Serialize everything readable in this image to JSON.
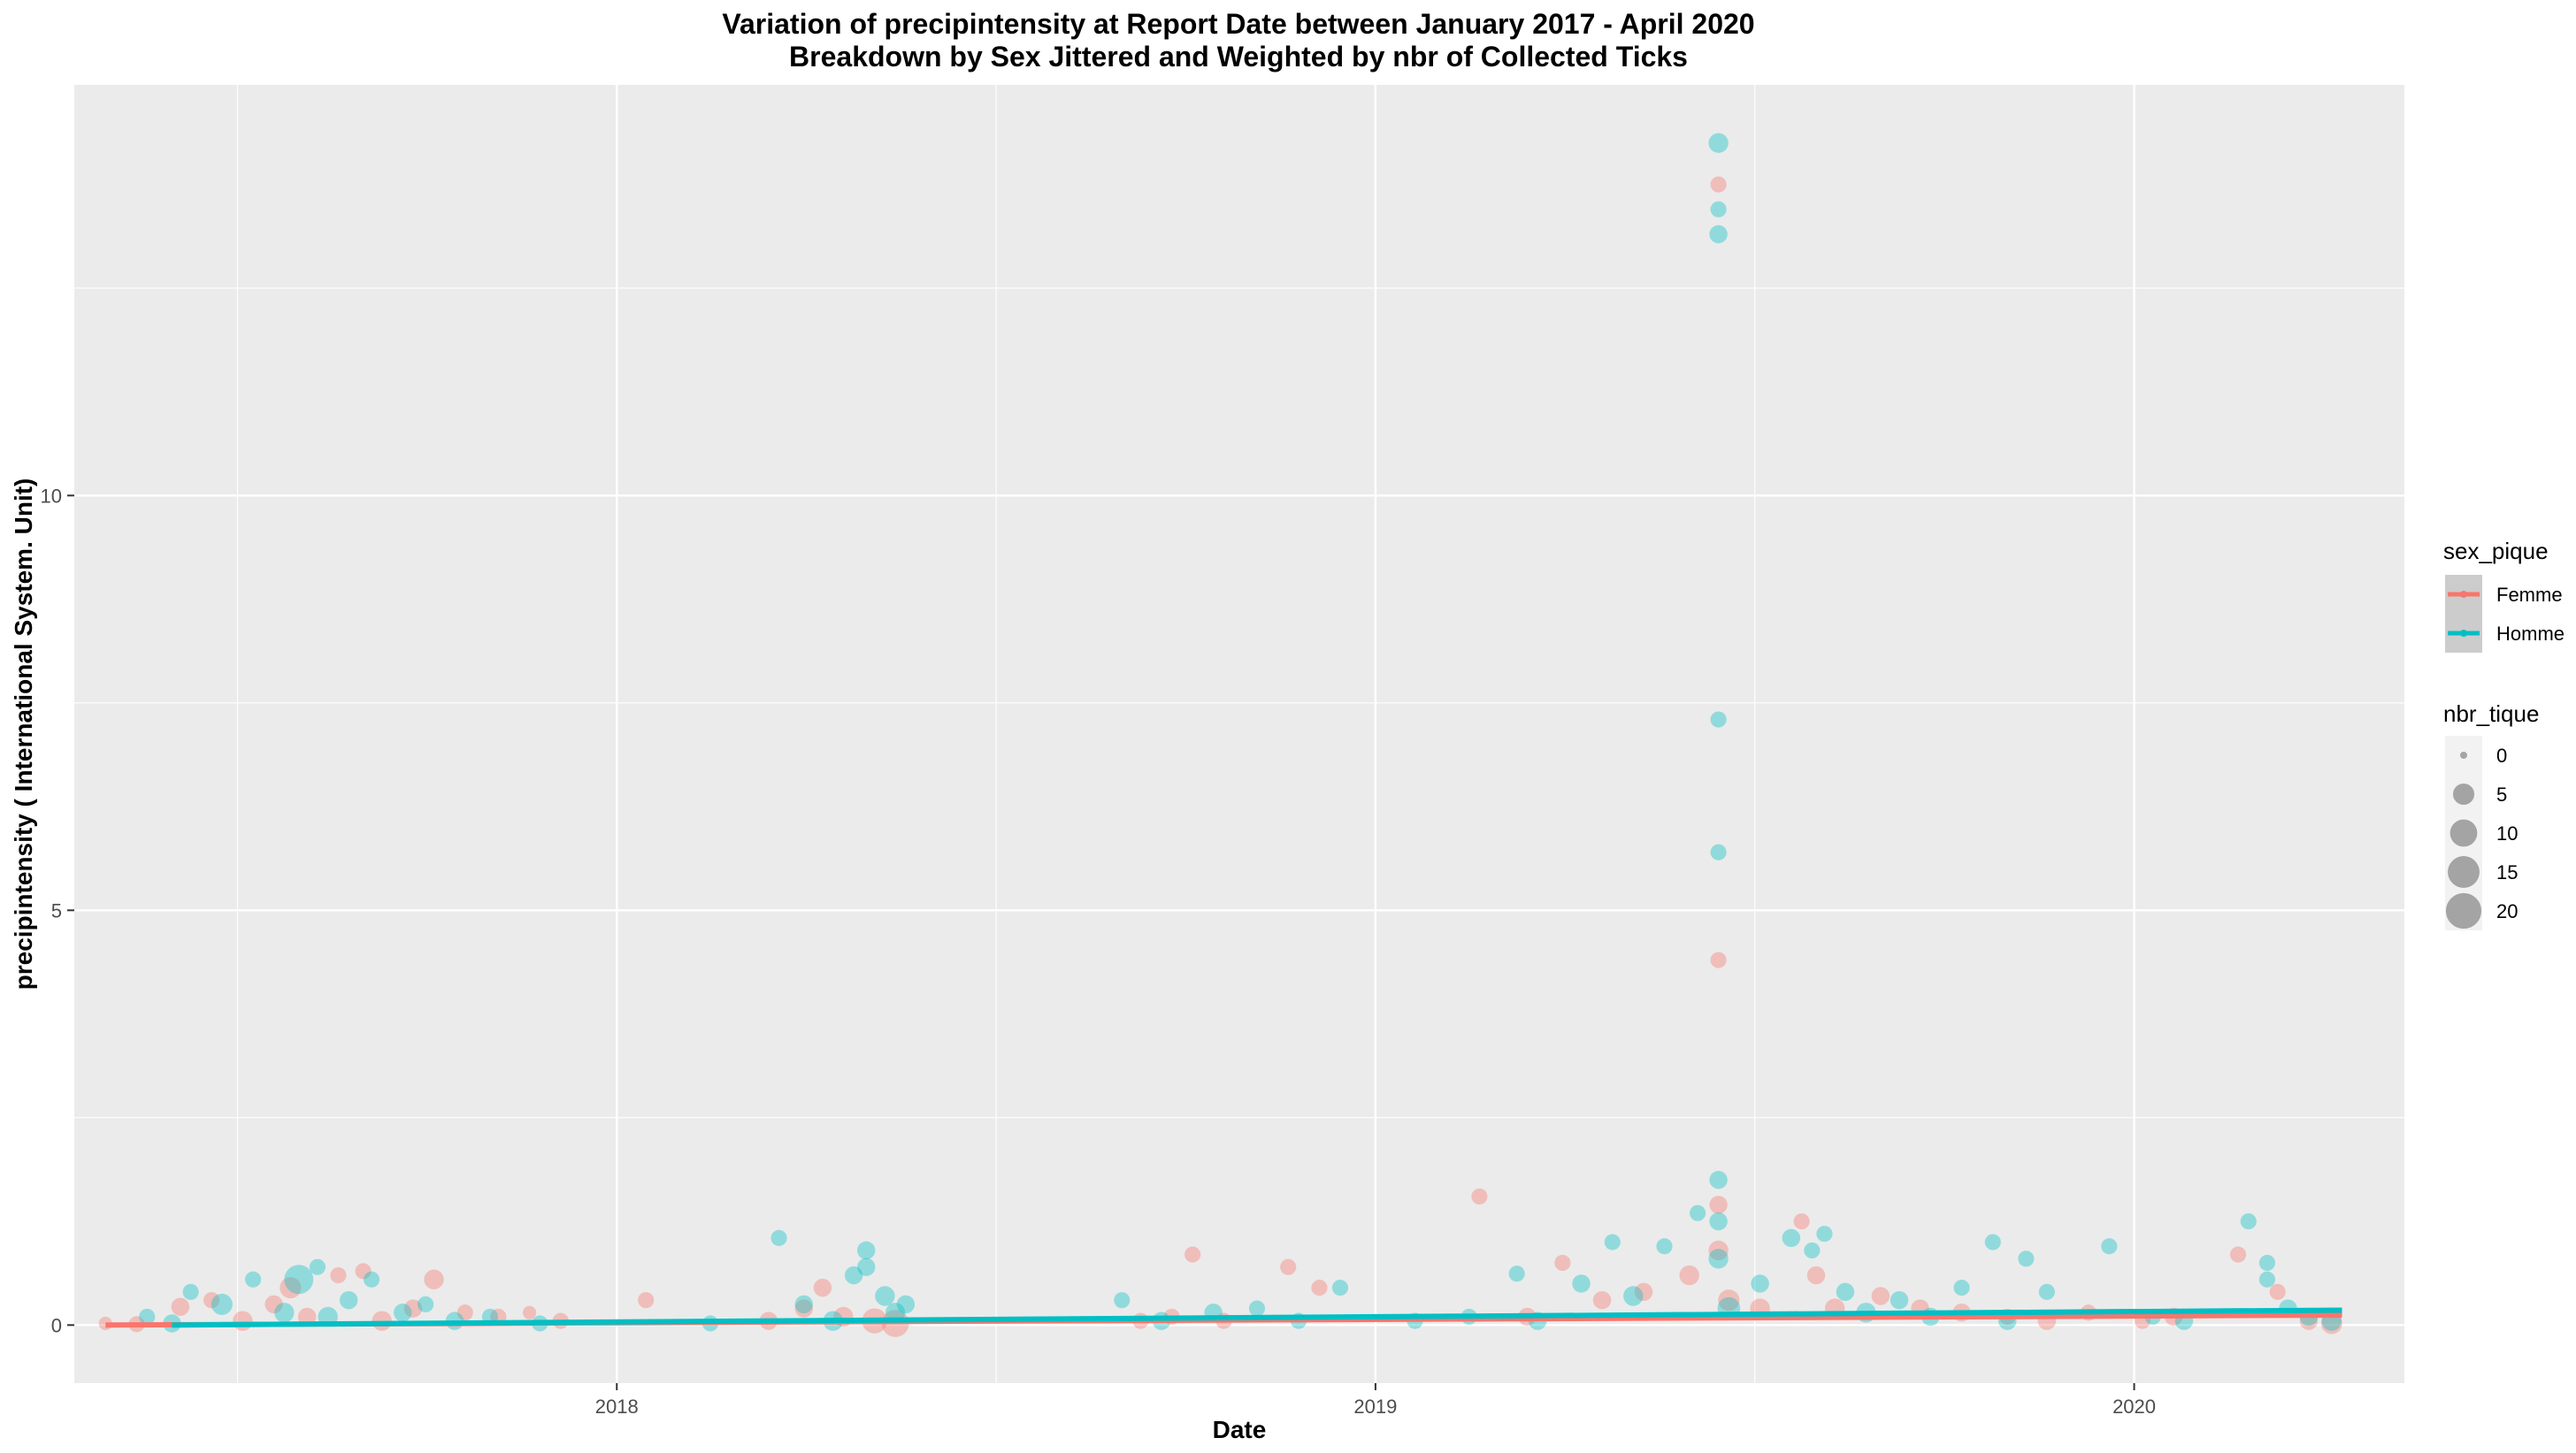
{
  "chart_data": {
    "type": "scatter",
    "title": "Variation of  precipintensity  at Report Date between January 2017 - April 2020",
    "subtitle": "Breakdown by Sex Jittered and Weighted by nbr of Collected Ticks",
    "xlabel": "Date",
    "ylabel": "precipintensity ( International System. Unit)",
    "xlim": [
      "2017-04-15",
      "2020-05-10"
    ],
    "ylim": [
      -0.7,
      14.95
    ],
    "x_ticks": [
      {
        "label": "2018",
        "value": "2018-01-01"
      },
      {
        "label": "2019",
        "value": "2019-01-01"
      },
      {
        "label": "2020",
        "value": "2020-01-01"
      }
    ],
    "y_ticks": [
      {
        "label": "0",
        "value": 0
      },
      {
        "label": "5",
        "value": 5
      },
      {
        "label": "10",
        "value": 10
      }
    ],
    "grid": true,
    "legend_placement": "right",
    "colors": {
      "panel": "#EBEBEB",
      "grid": "#FFFFFF",
      "Femme": "#F8766D",
      "Homme": "#00BFC4"
    },
    "legend_color": {
      "title": "sex_pique",
      "entries": [
        {
          "label": "Femme",
          "color": "#F8766D"
        },
        {
          "label": "Homme",
          "color": "#00BFC4"
        }
      ]
    },
    "legend_size": {
      "title": "nbr_tique",
      "entries": [
        {
          "label": "0",
          "value": 0
        },
        {
          "label": "5",
          "value": 5
        },
        {
          "label": "10",
          "value": 10
        },
        {
          "label": "15",
          "value": 15
        },
        {
          "label": "20",
          "value": 20
        }
      ]
    },
    "trend_lines": [
      {
        "name": "Femme",
        "points": [
          [
            "2017-04-30",
            0.0
          ],
          [
            "2020-04-10",
            0.12
          ]
        ]
      },
      {
        "name": "Homme",
        "points": [
          [
            "2017-06-01",
            0.0
          ],
          [
            "2020-04-10",
            0.18
          ]
        ]
      }
    ],
    "series": [
      {
        "name": "Femme",
        "points": [
          [
            "2017-04-30",
            0.02,
            1
          ],
          [
            "2017-05-15",
            0.01,
            2
          ],
          [
            "2017-06-05",
            0.22,
            3
          ],
          [
            "2017-06-20",
            0.3,
            2
          ],
          [
            "2017-07-05",
            0.05,
            4
          ],
          [
            "2017-07-20",
            0.25,
            3
          ],
          [
            "2017-07-28",
            0.45,
            5
          ],
          [
            "2017-08-05",
            0.1,
            3
          ],
          [
            "2017-08-20",
            0.6,
            2
          ],
          [
            "2017-09-01",
            0.65,
            2
          ],
          [
            "2017-09-10",
            0.05,
            4
          ],
          [
            "2017-09-25",
            0.2,
            3
          ],
          [
            "2017-10-05",
            0.55,
            4
          ],
          [
            "2017-10-20",
            0.15,
            2
          ],
          [
            "2017-11-05",
            0.1,
            2
          ],
          [
            "2017-11-20",
            0.15,
            1
          ],
          [
            "2017-12-05",
            0.05,
            2
          ],
          [
            "2018-01-15",
            0.3,
            2
          ],
          [
            "2018-03-15",
            0.05,
            3
          ],
          [
            "2018-04-01",
            0.2,
            3
          ],
          [
            "2018-04-10",
            0.45,
            3
          ],
          [
            "2018-04-20",
            0.1,
            4
          ],
          [
            "2018-05-05",
            0.05,
            8
          ],
          [
            "2018-05-15",
            0.02,
            10
          ],
          [
            "2018-09-10",
            0.05,
            2
          ],
          [
            "2018-09-25",
            0.1,
            2
          ],
          [
            "2018-10-05",
            0.85,
            2
          ],
          [
            "2018-10-20",
            0.05,
            2
          ],
          [
            "2018-11-20",
            0.7,
            2
          ],
          [
            "2018-12-05",
            0.45,
            2
          ],
          [
            "2019-02-20",
            1.55,
            2
          ],
          [
            "2019-03-15",
            0.1,
            3
          ],
          [
            "2019-04-01",
            0.75,
            2
          ],
          [
            "2019-04-20",
            0.3,
            3
          ],
          [
            "2019-05-10",
            0.4,
            3
          ],
          [
            "2019-06-01",
            0.6,
            4
          ],
          [
            "2019-06-15",
            13.75,
            2
          ],
          [
            "2019-06-15",
            4.4,
            2
          ],
          [
            "2019-06-15",
            1.45,
            3
          ],
          [
            "2019-06-15",
            0.9,
            4
          ],
          [
            "2019-06-20",
            0.3,
            5
          ],
          [
            "2019-07-05",
            0.2,
            4
          ],
          [
            "2019-07-25",
            1.25,
            2
          ],
          [
            "2019-08-01",
            0.6,
            3
          ],
          [
            "2019-08-10",
            0.2,
            4
          ],
          [
            "2019-09-01",
            0.35,
            3
          ],
          [
            "2019-09-20",
            0.2,
            3
          ],
          [
            "2019-10-10",
            0.15,
            3
          ],
          [
            "2019-11-01",
            0.1,
            2
          ],
          [
            "2019-11-20",
            0.05,
            3
          ],
          [
            "2019-12-10",
            0.15,
            2
          ],
          [
            "2020-01-05",
            0.05,
            2
          ],
          [
            "2020-01-20",
            0.1,
            3
          ],
          [
            "2020-02-20",
            0.85,
            2
          ],
          [
            "2020-03-10",
            0.4,
            2
          ],
          [
            "2020-03-25",
            0.05,
            3
          ],
          [
            "2020-04-05",
            0.02,
            5
          ]
        ]
      },
      {
        "name": "Homme",
        "points": [
          [
            "2017-05-20",
            0.1,
            2
          ],
          [
            "2017-06-01",
            0.02,
            3
          ],
          [
            "2017-06-10",
            0.4,
            2
          ],
          [
            "2017-06-25",
            0.25,
            5
          ],
          [
            "2017-07-10",
            0.55,
            2
          ],
          [
            "2017-07-25",
            0.15,
            4
          ],
          [
            "2017-08-01",
            0.55,
            12
          ],
          [
            "2017-08-10",
            0.7,
            2
          ],
          [
            "2017-08-15",
            0.1,
            4
          ],
          [
            "2017-08-25",
            0.3,
            3
          ],
          [
            "2017-09-05",
            0.55,
            2
          ],
          [
            "2017-09-20",
            0.15,
            3
          ],
          [
            "2017-10-01",
            0.25,
            2
          ],
          [
            "2017-10-15",
            0.05,
            3
          ],
          [
            "2017-11-01",
            0.1,
            2
          ],
          [
            "2017-11-25",
            0.02,
            2
          ],
          [
            "2018-02-15",
            0.02,
            2
          ],
          [
            "2018-03-20",
            1.05,
            2
          ],
          [
            "2018-04-01",
            0.25,
            3
          ],
          [
            "2018-04-15",
            0.05,
            4
          ],
          [
            "2018-04-25",
            0.6,
            3
          ],
          [
            "2018-05-01",
            0.9,
            3
          ],
          [
            "2018-05-01",
            0.7,
            3
          ],
          [
            "2018-05-10",
            0.35,
            4
          ],
          [
            "2018-05-15",
            0.15,
            4
          ],
          [
            "2018-05-20",
            0.25,
            3
          ],
          [
            "2018-09-01",
            0.3,
            2
          ],
          [
            "2018-09-20",
            0.05,
            3
          ],
          [
            "2018-10-15",
            0.15,
            3
          ],
          [
            "2018-11-05",
            0.2,
            2
          ],
          [
            "2018-11-25",
            0.05,
            2
          ],
          [
            "2018-12-15",
            0.45,
            2
          ],
          [
            "2019-01-20",
            0.05,
            2
          ],
          [
            "2019-02-15",
            0.1,
            2
          ],
          [
            "2019-03-10",
            0.62,
            2
          ],
          [
            "2019-03-20",
            0.05,
            3
          ],
          [
            "2019-04-10",
            0.5,
            3
          ],
          [
            "2019-04-25",
            1.0,
            2
          ],
          [
            "2019-05-05",
            0.35,
            4
          ],
          [
            "2019-05-20",
            0.95,
            2
          ],
          [
            "2019-06-05",
            1.35,
            2
          ],
          [
            "2019-06-15",
            14.25,
            4
          ],
          [
            "2019-06-15",
            13.45,
            2
          ],
          [
            "2019-06-15",
            13.15,
            3
          ],
          [
            "2019-06-15",
            7.3,
            2
          ],
          [
            "2019-06-15",
            5.7,
            2
          ],
          [
            "2019-06-15",
            1.75,
            3
          ],
          [
            "2019-06-15",
            1.25,
            3
          ],
          [
            "2019-06-15",
            0.8,
            4
          ],
          [
            "2019-06-20",
            0.2,
            6
          ],
          [
            "2019-07-05",
            0.5,
            3
          ],
          [
            "2019-07-20",
            1.05,
            3
          ],
          [
            "2019-07-30",
            0.9,
            2
          ],
          [
            "2019-08-05",
            1.1,
            2
          ],
          [
            "2019-08-15",
            0.4,
            3
          ],
          [
            "2019-08-25",
            0.15,
            4
          ],
          [
            "2019-09-10",
            0.3,
            3
          ],
          [
            "2019-09-25",
            0.1,
            3
          ],
          [
            "2019-10-10",
            0.45,
            2
          ],
          [
            "2019-10-25",
            1.0,
            2
          ],
          [
            "2019-11-01",
            0.05,
            3
          ],
          [
            "2019-11-10",
            0.8,
            2
          ],
          [
            "2019-11-20",
            0.4,
            2
          ],
          [
            "2019-12-20",
            0.95,
            2
          ],
          [
            "2020-01-10",
            0.1,
            2
          ],
          [
            "2020-01-25",
            0.05,
            3
          ],
          [
            "2020-02-25",
            1.25,
            2
          ],
          [
            "2020-03-05",
            0.75,
            2
          ],
          [
            "2020-03-05",
            0.55,
            2
          ],
          [
            "2020-03-15",
            0.2,
            3
          ],
          [
            "2020-03-25",
            0.1,
            3
          ],
          [
            "2020-04-05",
            0.05,
            4
          ]
        ]
      }
    ]
  }
}
